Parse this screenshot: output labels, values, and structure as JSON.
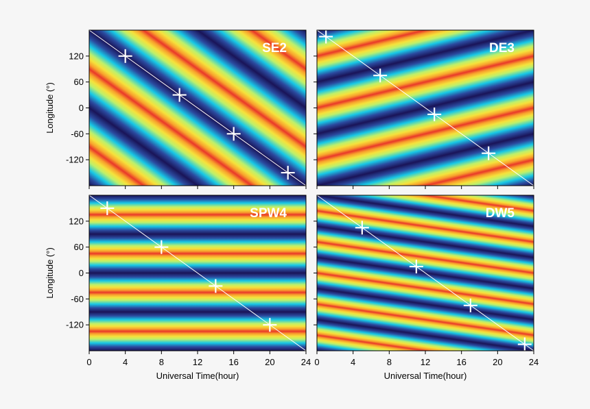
{
  "chart_data": [
    {
      "type": "heatmap",
      "title": "SE2",
      "xlabel": "",
      "ylabel": "Longitude (°)",
      "xlim": [
        0,
        24
      ],
      "ylim": [
        -180,
        180
      ],
      "xticks": [],
      "yticks": [
        "120",
        "60",
        "0",
        "-60",
        "-120"
      ],
      "wave_period_hours": 12,
      "zonal_wavenumber": 2,
      "phase_line": [
        [
          0,
          180
        ],
        [
          24,
          -180
        ]
      ],
      "markers": [
        [
          4,
          120
        ],
        [
          10,
          30
        ],
        [
          16,
          -60
        ],
        [
          22,
          -150
        ]
      ]
    },
    {
      "type": "heatmap",
      "title": "DE3",
      "xlabel": "",
      "ylabel": "",
      "xlim": [
        0,
        24
      ],
      "ylim": [
        -180,
        180
      ],
      "xticks": [],
      "yticks": [],
      "wave_period_hours": 24,
      "zonal_wavenumber": -3,
      "phase_line": [
        [
          0,
          180
        ],
        [
          24,
          -180
        ]
      ],
      "markers": [
        [
          1,
          165
        ],
        [
          7,
          75
        ],
        [
          13,
          -15
        ],
        [
          19,
          -105
        ]
      ]
    },
    {
      "type": "heatmap",
      "title": "SPW4",
      "xlabel": "Universal Time(hour)",
      "ylabel": "Longitude (°)",
      "xlim": [
        0,
        24
      ],
      "ylim": [
        -180,
        180
      ],
      "xticks": [
        "0",
        "4",
        "8",
        "12",
        "16",
        "20",
        "24"
      ],
      "yticks": [
        "120",
        "60",
        "0",
        "-60",
        "-120"
      ],
      "wave_period_hours": null,
      "zonal_wavenumber": 4,
      "phase_line": [
        [
          0,
          180
        ],
        [
          24,
          -180
        ]
      ],
      "markers": [
        [
          2,
          150
        ],
        [
          8,
          60
        ],
        [
          14,
          -30
        ],
        [
          20,
          -120
        ]
      ]
    },
    {
      "type": "heatmap",
      "title": "DW5",
      "xlabel": "Universal Time(hour)",
      "ylabel": "",
      "xlim": [
        0,
        24
      ],
      "ylim": [
        -180,
        180
      ],
      "xticks": [
        "0",
        "4",
        "8",
        "12",
        "16",
        "20",
        "24"
      ],
      "yticks": [],
      "wave_period_hours": 24,
      "zonal_wavenumber": 5,
      "phase_line": [
        [
          0,
          180
        ],
        [
          24,
          -180
        ]
      ],
      "markers": [
        [
          5,
          105
        ],
        [
          11,
          15
        ],
        [
          17,
          -75
        ],
        [
          23,
          -165
        ]
      ]
    }
  ],
  "colors": {
    "colormap": [
      "#1a1458",
      "#2b4a9f",
      "#17c8e6",
      "#bff06a",
      "#f5e23c",
      "#f8a02c",
      "#e9382a",
      "#ff2e2e"
    ],
    "phase_line": "#ffffff",
    "markers": "#ffffff"
  }
}
